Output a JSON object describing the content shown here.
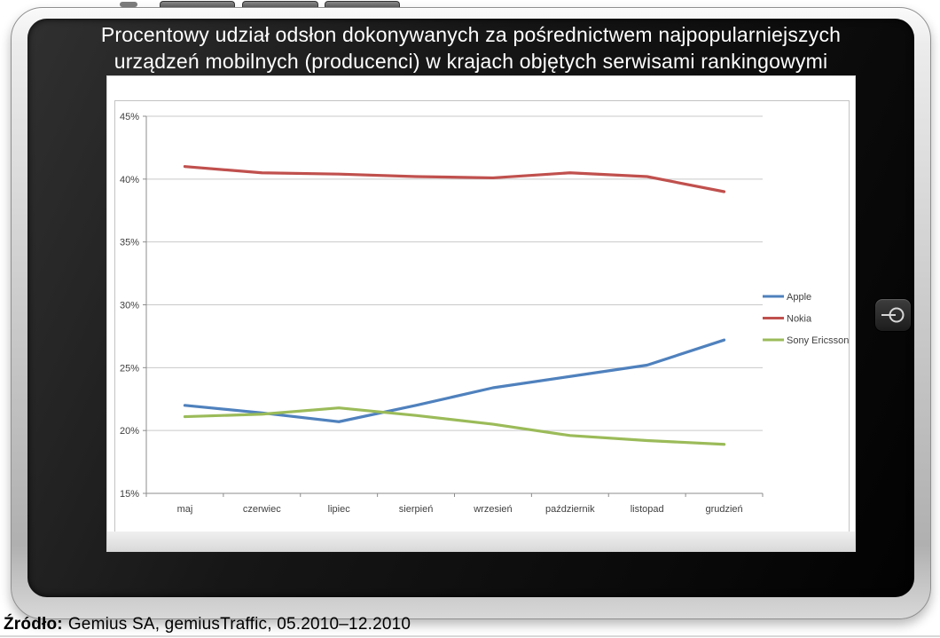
{
  "slide": {
    "title_line1": "Procentowy udział odsłon dokonywanych za pośrednictwem najpopularniejszych",
    "title_line2": "urządzeń mobilnych (producenci) w krajach objętych serwisami rankingowymi",
    "source_label": "Źródło:",
    "source_text": "Gemius SA, gemiusTraffic, 05.2010–12.2010"
  },
  "chart_data": {
    "type": "line",
    "title": "",
    "xlabel": "",
    "ylabel": "",
    "categories": [
      "maj",
      "czerwiec",
      "lipiec",
      "sierpień",
      "wrzesień",
      "październik",
      "listopad",
      "grudzień"
    ],
    "series": [
      {
        "name": "Apple",
        "color": "#4f81bd",
        "values": [
          22.0,
          21.4,
          20.7,
          22.0,
          23.4,
          24.3,
          25.2,
          27.2
        ]
      },
      {
        "name": "Nokia",
        "color": "#c0504d",
        "values": [
          41.0,
          40.5,
          40.4,
          40.2,
          40.1,
          40.5,
          40.2,
          39.0
        ]
      },
      {
        "name": "Sony Ericsson",
        "color": "#9bbb59",
        "values": [
          21.1,
          21.3,
          21.8,
          21.2,
          20.5,
          19.6,
          19.2,
          18.9
        ]
      }
    ],
    "ylim": [
      15,
      45
    ],
    "ytick_step": 5,
    "ytick_suffix": "%",
    "grid": true,
    "legend_position": "middle-right"
  }
}
